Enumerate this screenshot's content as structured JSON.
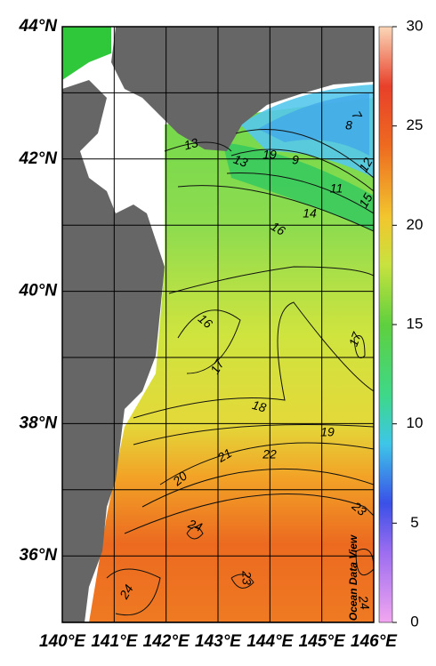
{
  "map": {
    "lat_labels": [
      "44°N",
      "42°N",
      "40°N",
      "38°N",
      "36°N"
    ],
    "lon_labels": [
      "140°E",
      "141°E",
      "142°E",
      "143°E",
      "144°E",
      "145°E",
      "146°E"
    ],
    "contour_labels": [
      "13",
      "13",
      "19",
      "9",
      "8",
      "7",
      "12",
      "11",
      "14",
      "15",
      "16",
      "16",
      "17",
      "17",
      "18",
      "19",
      "20",
      "21",
      "22",
      "23",
      "24",
      "24",
      "23",
      "24"
    ]
  },
  "colorbar": {
    "ticks": [
      0,
      5,
      10,
      15,
      20,
      25,
      30
    ]
  },
  "credit": "Ocean Data View"
}
